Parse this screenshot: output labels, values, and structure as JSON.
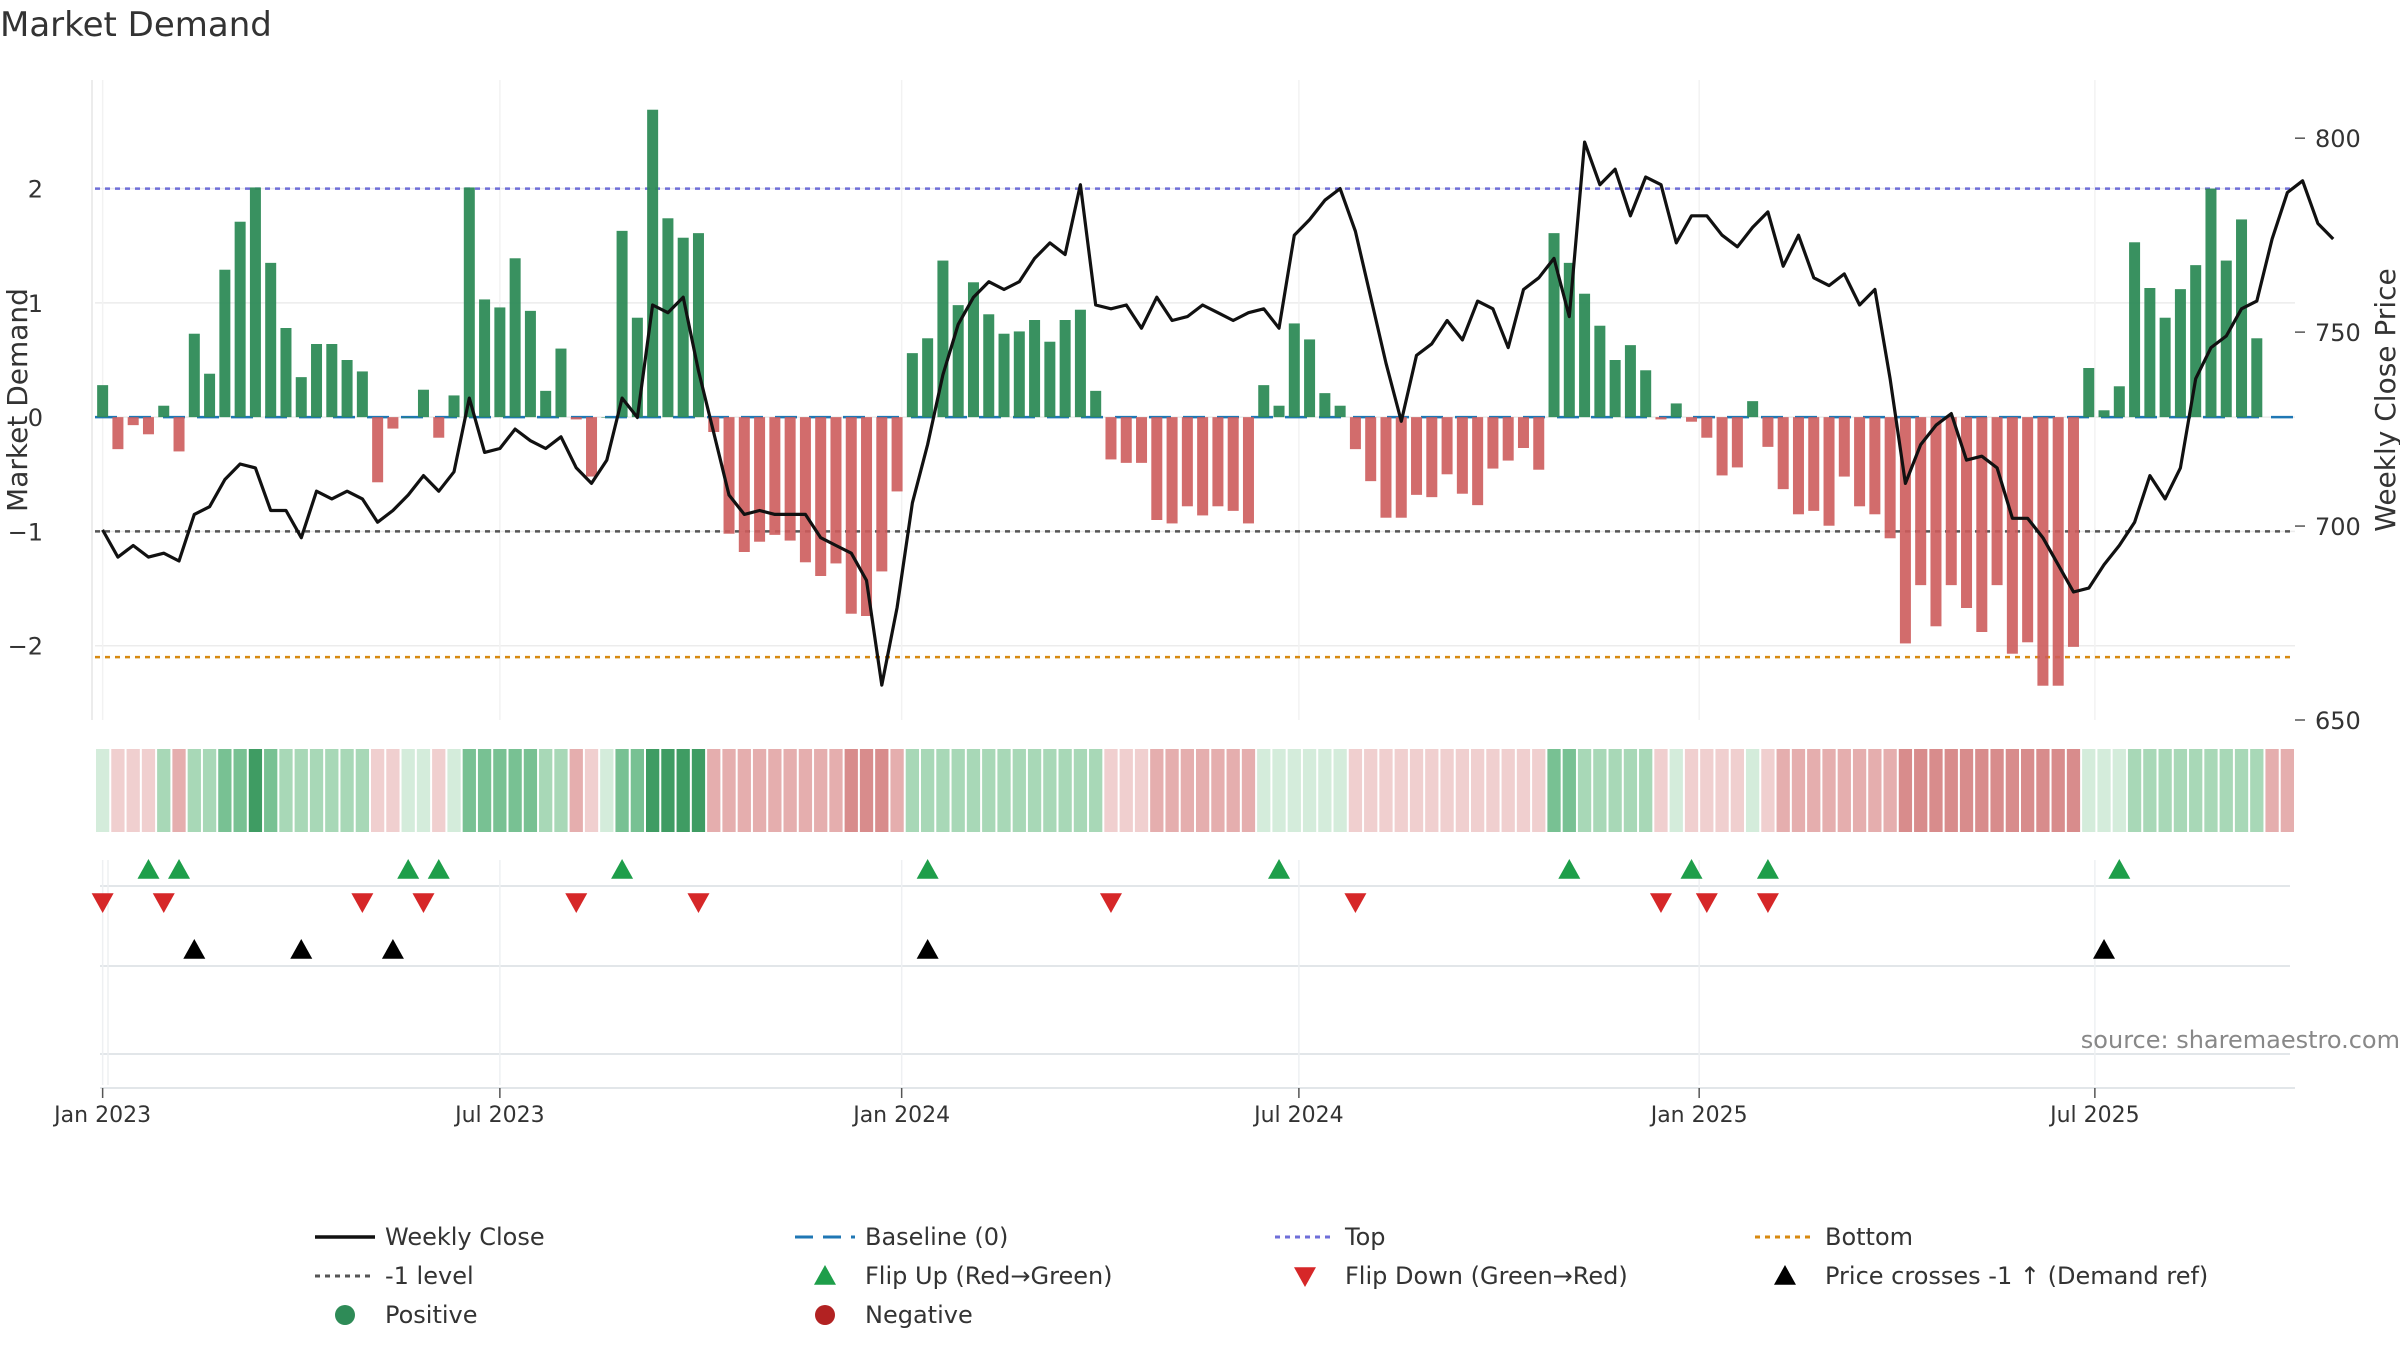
{
  "chart_data": {
    "type": "bar",
    "title": "Market Demand",
    "ylabel_left": "Market Demand",
    "ylabel_right": "Weekly Close Price",
    "left_axis": {
      "ylim": [
        -2.65,
        2.95
      ],
      "ticks": [
        -2,
        -1,
        0,
        1,
        2
      ],
      "tick_labels": [
        "−2",
        "−1",
        "0",
        "1",
        "2"
      ]
    },
    "right_axis": {
      "ylim": [
        650,
        815
      ],
      "ticks": [
        650,
        700,
        750,
        800
      ],
      "tick_labels": [
        "650",
        "700",
        "750",
        "800"
      ]
    },
    "x_axis": {
      "start": "2023-01-01",
      "weeks": 144,
      "tick_labels": [
        {
          "label": "Jan 2023",
          "week": 0.5
        },
        {
          "label": "Jul 2023",
          "week": 26.5
        },
        {
          "label": "Jan 2024",
          "week": 52.8
        },
        {
          "label": "Jul 2024",
          "week": 78.8
        },
        {
          "label": "Jan 2025",
          "week": 105.0
        },
        {
          "label": "Jul 2025",
          "week": 130.9
        }
      ]
    },
    "reference_lines": [
      {
        "name": "Top",
        "value": 2,
        "color": "#6f6fd8"
      },
      {
        "name": "-1 level",
        "value": -1,
        "color": "#555555"
      },
      {
        "name": "Bottom",
        "value": -2.1,
        "color": "#d88a10"
      },
      {
        "name": "Baseline (0)",
        "value": 0,
        "color": "#1f77b4"
      }
    ],
    "demand": [
      0.28,
      -0.28,
      -0.07,
      -0.15,
      0.1,
      -0.3,
      0.73,
      0.38,
      1.29,
      1.71,
      2.01,
      1.35,
      0.78,
      0.35,
      0.64,
      0.64,
      0.5,
      0.4,
      -0.57,
      -0.1,
      0.0,
      0.24,
      -0.18,
      0.19,
      2.01,
      1.03,
      0.96,
      1.39,
      0.93,
      0.23,
      0.6,
      -0.02,
      -0.52,
      0.0,
      1.63,
      0.87,
      2.69,
      1.74,
      1.57,
      1.61,
      -0.13,
      -1.02,
      -1.18,
      -1.09,
      -1.03,
      -1.08,
      -1.27,
      -1.39,
      -1.28,
      -1.72,
      -1.74,
      -1.35,
      -0.65,
      0.56,
      0.69,
      1.37,
      0.98,
      1.18,
      0.9,
      0.73,
      0.75,
      0.85,
      0.66,
      0.85,
      0.94,
      0.23,
      -0.37,
      -0.4,
      -0.4,
      -0.9,
      -0.93,
      -0.78,
      -0.86,
      -0.78,
      -0.82,
      -0.93,
      0.28,
      0.1,
      0.82,
      0.68,
      0.21,
      0.1,
      -0.28,
      -0.56,
      -0.88,
      -0.88,
      -0.68,
      -0.7,
      -0.5,
      -0.67,
      -0.77,
      -0.45,
      -0.38,
      -0.27,
      -0.46,
      1.61,
      1.35,
      1.08,
      0.8,
      0.5,
      0.63,
      0.41,
      -0.02,
      0.12,
      -0.04,
      -0.18,
      -0.51,
      -0.44,
      0.14,
      -0.26,
      -0.63,
      -0.85,
      -0.82,
      -0.95,
      -0.52,
      -0.78,
      -0.85,
      -1.06,
      -1.98,
      -1.47,
      -1.83,
      -1.47,
      -1.67,
      -1.88,
      -1.47,
      -2.07,
      -1.97,
      -2.35,
      -2.35,
      -2.01,
      0.43,
      0.06,
      0.27,
      1.53,
      1.13,
      0.87,
      1.12,
      1.33,
      2.0,
      1.37,
      1.73,
      0.69
    ],
    "weekly_close": [
      699,
      692,
      695,
      692,
      693,
      691,
      703,
      705,
      712,
      716,
      715,
      704,
      704,
      697,
      709,
      707,
      709,
      707,
      701,
      704,
      708,
      713,
      709,
      714,
      733,
      719,
      720,
      725,
      722,
      720,
      723,
      715,
      711,
      717,
      733,
      728,
      757,
      755,
      759,
      740,
      724,
      708,
      703,
      704,
      703,
      703,
      703,
      697,
      695,
      693,
      686,
      659,
      679,
      706,
      721,
      739,
      752,
      759,
      763,
      761,
      763,
      769,
      773,
      770,
      788,
      757,
      756,
      757,
      751,
      759,
      753,
      754,
      757,
      755,
      753,
      755,
      756,
      751,
      775,
      779,
      784,
      787,
      776,
      759,
      742,
      727,
      744,
      747,
      753,
      748,
      758,
      756,
      746,
      761,
      764,
      769,
      754,
      799,
      788,
      792,
      780,
      790,
      788,
      773,
      780,
      780,
      775,
      772,
      777,
      781,
      767,
      775,
      764,
      762,
      765,
      757,
      761,
      738,
      711,
      721,
      726,
      729,
      717,
      718,
      715,
      702,
      702,
      697,
      690,
      683,
      684,
      690,
      695,
      701,
      713,
      707,
      715,
      738,
      746,
      749,
      756,
      758,
      774,
      786,
      789,
      778,
      774
    ],
    "strip_shade_levels": [
      1,
      1,
      1,
      1,
      2,
      2,
      2,
      2,
      3,
      3,
      4,
      3,
      2,
      2,
      2,
      2,
      2,
      2,
      1,
      1,
      1,
      1,
      1,
      1,
      3,
      3,
      3,
      3,
      3,
      2,
      2,
      2,
      1,
      1,
      3,
      3,
      4,
      4,
      4,
      4,
      2,
      2,
      2,
      2,
      2,
      2,
      2,
      2,
      2,
      3,
      3,
      3,
      2,
      2,
      2,
      2,
      2,
      2,
      2,
      2,
      2,
      2,
      2,
      2,
      2,
      2,
      1,
      1,
      1,
      2,
      2,
      2,
      2,
      2,
      2,
      2,
      1,
      1,
      1,
      1,
      1,
      1,
      1,
      1,
      1,
      1,
      1,
      1,
      1,
      1,
      1,
      1,
      1,
      1,
      1,
      3,
      3,
      2,
      2,
      2,
      2,
      2,
      1,
      1,
      1,
      1,
      1,
      1,
      1,
      1,
      2,
      2,
      2,
      2,
      2,
      2,
      2,
      2,
      3,
      3,
      3,
      3,
      3,
      3,
      3,
      3,
      3,
      3,
      3,
      3,
      1,
      1,
      1,
      2,
      2,
      2,
      2,
      2,
      2,
      2,
      2,
      2,
      2,
      2
    ],
    "events": {
      "flip_up": [
        3.5,
        5.5,
        20.5,
        22.5,
        34.5,
        54.5,
        77.5,
        96.5,
        104.5,
        109.5,
        132.5
      ],
      "flip_down": [
        0.5,
        4.5,
        17.5,
        21.5,
        31.5,
        39.5,
        66.5,
        82.5,
        102.5,
        105.5,
        109.5
      ],
      "price_cross": [
        6.5,
        13.5,
        19.5,
        54.5,
        131.5
      ]
    },
    "colors": {
      "positive": "#2e8b57",
      "negative": "#cd5c5c",
      "close_line": "#111111",
      "flip_up": "#1e9e4a",
      "flip_down": "#d62728",
      "cross": "#000000"
    },
    "source": "source: sharemaestro.com",
    "legend": [
      {
        "label": "Weekly Close",
        "icon": "line-solid",
        "color": "#111111"
      },
      {
        "label": "Baseline (0)",
        "icon": "line-dashed",
        "color": "#1f77b4"
      },
      {
        "label": "Top",
        "icon": "line-dotted",
        "color": "#6f6fd8"
      },
      {
        "label": "Bottom",
        "icon": "line-dotted",
        "color": "#d88a10"
      },
      {
        "label": "-1 level",
        "icon": "line-dotted",
        "color": "#555555"
      },
      {
        "label": "Flip Up (Red→Green)",
        "icon": "triangle-up",
        "color": "#1e9e4a"
      },
      {
        "label": "Flip Down (Green→Red)",
        "icon": "triangle-down",
        "color": "#d62728"
      },
      {
        "label": "Price crosses -1 ↑ (Demand ref)",
        "icon": "triangle-up",
        "color": "#000000"
      },
      {
        "label": "Positive",
        "icon": "circle",
        "color": "#2e8b57"
      },
      {
        "label": "Negative",
        "icon": "circle",
        "color": "#b22222"
      }
    ]
  }
}
